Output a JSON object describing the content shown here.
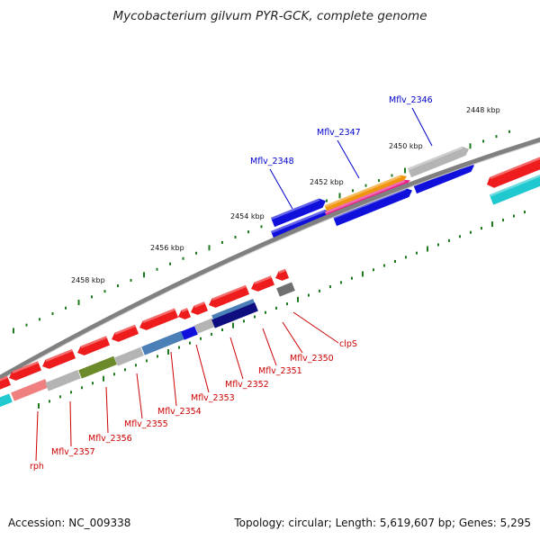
{
  "header": {
    "title": "Mycobacterium gilvum PYR-GCK, complete genome"
  },
  "footer": {
    "accession": "Accession: NC_009338",
    "summary": "Topology: circular; Length: 5,619,607 bp; Genes: 5,295"
  },
  "scale_labels": [
    "2448 kbp",
    "2450 kbp",
    "2452 kbp",
    "2454 kbp",
    "2456 kbp",
    "2458 kbp"
  ],
  "forward_labels": [
    "Mflv_2346",
    "Mflv_2347",
    "Mflv_2348"
  ],
  "reverse_labels": [
    "clpS",
    "Mflv_2350",
    "Mflv_2351",
    "Mflv_2352",
    "Mflv_2353",
    "Mflv_2354",
    "Mflv_2355",
    "Mflv_2356",
    "Mflv_2357",
    "rph"
  ],
  "colors": {
    "forward_label": "#0000cc",
    "reverse_label": "#cc0000",
    "backbone": "#808080",
    "tick": "#1f7a1f",
    "red": "#ee1c1c",
    "blue": "#1010dd",
    "grey": "#b4b4b4",
    "orange": "#f0960c",
    "pink": "#e8208a",
    "cyan": "#20c8d0",
    "darkgrey": "#707070",
    "steelblue": "#4a7fb8",
    "navy": "#0e0e80",
    "olive": "#6c8a2a",
    "salmon": "#f08080"
  }
}
